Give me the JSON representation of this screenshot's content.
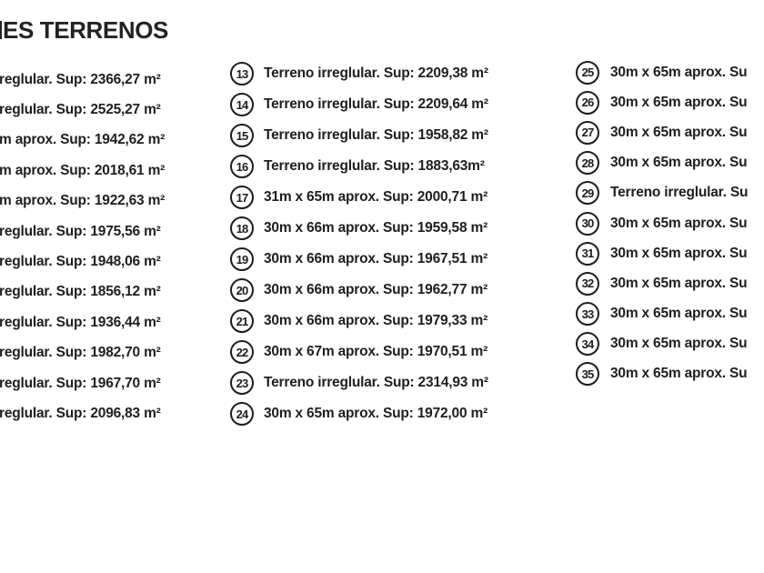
{
  "colors": {
    "background": "#ffffff",
    "text": "#1d1d1d"
  },
  "title": {
    "text": "ES TERRENOS"
  },
  "columns": [
    {
      "id": "left",
      "items": [
        {
          "text": "reglular. Sup: 2366,27 m²"
        },
        {
          "text": "reglular. Sup: 2525,27 m²"
        },
        {
          "text": "m aprox. Sup: 1942,62 m²"
        },
        {
          "text": "m aprox. Sup: 2018,61 m²"
        },
        {
          "text": "m aprox. Sup: 1922,63 m²"
        },
        {
          "text": "reglular. Sup: 1975,56 m²"
        },
        {
          "text": "reglular. Sup: 1948,06 m²"
        },
        {
          "text": "reglular. Sup: 1856,12 m²"
        },
        {
          "text": "reglular. Sup: 1936,44 m²"
        },
        {
          "text": "reglular. Sup: 1982,70 m²"
        },
        {
          "text": "reglular. Sup: 1967,70 m²"
        },
        {
          "text": "reglular. Sup: 2096,83 m²"
        }
      ]
    },
    {
      "id": "middle",
      "items": [
        {
          "number": "13",
          "text": "Terreno irreglular. Sup: 2209,38 m²"
        },
        {
          "number": "14",
          "text": "Terreno irreglular. Sup: 2209,64 m²"
        },
        {
          "number": "15",
          "text": "Terreno irreglular. Sup: 1958,82 m²"
        },
        {
          "number": "16",
          "text": "Terreno irreglular. Sup: 1883,63m²"
        },
        {
          "number": "17",
          "text": "31m x 65m aprox. Sup: 2000,71 m²"
        },
        {
          "number": "18",
          "text": "30m x 66m aprox. Sup: 1959,58 m²"
        },
        {
          "number": "19",
          "text": "30m x 66m aprox. Sup: 1967,51 m²"
        },
        {
          "number": "20",
          "text": "30m x 66m aprox. Sup: 1962,77 m²"
        },
        {
          "number": "21",
          "text": "30m x 66m aprox. Sup: 1979,33 m²"
        },
        {
          "number": "22",
          "text": "30m x 67m aprox. Sup: 1970,51 m²"
        },
        {
          "number": "23",
          "text": "Terreno irreglular. Sup: 2314,93 m²"
        },
        {
          "number": "24",
          "text": "30m x 65m aprox. Sup: 1972,00 m²"
        }
      ]
    },
    {
      "id": "right",
      "items": [
        {
          "number": "25",
          "text": "30m x 65m aprox. Su"
        },
        {
          "number": "26",
          "text": "30m x 65m aprox. Su"
        },
        {
          "number": "27",
          "text": "30m x 65m aprox. Su"
        },
        {
          "number": "28",
          "text": "30m x 65m aprox. Su"
        },
        {
          "number": "29",
          "text": "Terreno irreglular. Su"
        },
        {
          "number": "30",
          "text": "30m x 65m aprox. Su"
        },
        {
          "number": "31",
          "text": "30m x 65m aprox. Su"
        },
        {
          "number": "32",
          "text": "30m x 65m aprox. Su"
        },
        {
          "number": "33",
          "text": "30m x 65m aprox. Su"
        },
        {
          "number": "34",
          "text": "30m x 65m aprox. Su"
        },
        {
          "number": "35",
          "text": "30m x 65m aprox. Su"
        }
      ]
    }
  ]
}
